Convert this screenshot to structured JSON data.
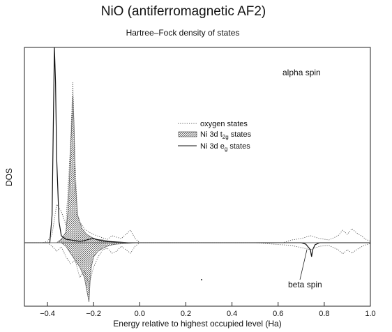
{
  "chart_data": {
    "type": "line",
    "title": "NiO (antiferromagnetic AF2)",
    "subtitle": "Hartree–Fock density of states",
    "xlabel": "Energy relative to highest occupied level (Ha)",
    "ylabel": "DOS",
    "xlim": [
      -0.5,
      1.0
    ],
    "ylim": [
      -1.0,
      3.0
    ],
    "xticks": [
      -0.4,
      -0.2,
      0.0,
      0.2,
      0.4,
      0.6,
      0.8,
      1.0
    ],
    "xtick_labels": [
      "−0.4",
      "−0.2",
      "0.0",
      "0.2",
      "0.4",
      "0.6",
      "0.8",
      "1.0"
    ],
    "grid": false,
    "legend_position": "center",
    "annotations": {
      "alpha": "alpha spin",
      "beta": "beta spin"
    },
    "series": [
      {
        "name": "oxygen states",
        "style": "dotted",
        "color": "#555555",
        "x": [
          -0.5,
          -0.42,
          -0.4,
          -0.38,
          -0.36,
          -0.34,
          -0.32,
          -0.3,
          -0.29,
          -0.28,
          -0.27,
          -0.26,
          -0.24,
          -0.22,
          -0.2,
          -0.17,
          -0.14,
          -0.12,
          -0.1,
          -0.08,
          -0.06,
          -0.04,
          -0.02,
          0.0,
          0.02,
          0.1,
          0.3,
          0.5,
          0.62,
          0.66,
          0.7,
          0.74,
          0.78,
          0.82,
          0.86,
          0.88,
          0.9,
          0.92,
          0.94,
          0.96,
          0.98,
          1.0
        ],
        "y": [
          0.0,
          0.0,
          0.02,
          0.12,
          0.55,
          0.45,
          0.25,
          1.4,
          2.3,
          1.1,
          0.4,
          0.3,
          0.2,
          0.15,
          0.12,
          0.08,
          0.05,
          0.1,
          0.08,
          0.06,
          0.12,
          0.18,
          0.06,
          0.0,
          0.0,
          0.0,
          0.0,
          0.0,
          0.0,
          0.04,
          0.06,
          0.1,
          0.06,
          0.04,
          0.1,
          0.18,
          0.12,
          0.2,
          0.14,
          0.1,
          0.05,
          0.02
        ]
      },
      {
        "name": "Ni 3d t2g states",
        "style": "hatched",
        "color": "#666666",
        "x": [
          -0.5,
          -0.36,
          -0.34,
          -0.32,
          -0.31,
          -0.3,
          -0.29,
          -0.285,
          -0.28,
          -0.27,
          -0.25,
          -0.23,
          -0.21,
          -0.19,
          -0.16,
          -0.13,
          -0.1,
          -0.05,
          0.0,
          1.0
        ],
        "y": [
          0.0,
          0.0,
          0.05,
          0.15,
          0.5,
          1.3,
          2.1,
          1.7,
          0.9,
          0.4,
          0.2,
          0.12,
          0.08,
          0.05,
          0.04,
          0.02,
          0.01,
          0.0,
          0.0,
          0.0
        ]
      },
      {
        "name": "Ni 3d eg states",
        "style": "solid",
        "color": "#111111",
        "x": [
          -0.5,
          -0.39,
          -0.38,
          -0.375,
          -0.37,
          -0.365,
          -0.36,
          -0.35,
          -0.34,
          -0.32,
          -0.3,
          -0.28,
          -0.26,
          -0.24,
          -0.22,
          -0.2,
          -0.18,
          -0.15,
          -0.1,
          -0.05,
          0.0,
          0.6,
          0.7,
          0.72,
          0.74,
          0.745,
          0.75,
          0.76,
          0.78,
          0.82,
          1.0
        ],
        "y": [
          0.0,
          0.0,
          0.4,
          1.6,
          2.8,
          2.3,
          1.2,
          0.3,
          0.1,
          0.05,
          0.04,
          0.03,
          0.02,
          0.03,
          0.05,
          0.06,
          0.04,
          0.02,
          0.01,
          0.0,
          0.0,
          0.0,
          0.0,
          -0.02,
          -0.1,
          -0.2,
          -0.1,
          -0.03,
          0.0,
          0.0,
          0.0
        ]
      },
      {
        "name": "oxygen states (beta)",
        "style": "dotted",
        "color": "#555555",
        "x": [
          -0.5,
          -0.4,
          -0.38,
          -0.36,
          -0.34,
          -0.32,
          -0.3,
          -0.28,
          -0.26,
          -0.24,
          -0.22,
          -0.2,
          -0.18,
          -0.16,
          -0.14,
          -0.12,
          -0.1,
          -0.08,
          -0.06,
          -0.04,
          -0.02,
          0.0,
          0.1,
          0.5,
          0.66,
          0.7,
          0.74,
          0.78,
          0.82,
          0.86,
          0.88,
          0.9,
          0.92,
          0.94,
          0.96,
          0.98,
          1.0
        ],
        "y": [
          0.0,
          0.0,
          -0.05,
          -0.12,
          -0.06,
          -0.2,
          -0.3,
          -0.25,
          -0.5,
          -0.4,
          -0.6,
          -0.35,
          -0.2,
          -0.1,
          -0.08,
          -0.15,
          -0.12,
          -0.05,
          -0.1,
          -0.15,
          -0.05,
          0.0,
          0.0,
          0.0,
          -0.04,
          -0.07,
          -0.1,
          -0.05,
          -0.04,
          -0.1,
          -0.16,
          -0.1,
          -0.15,
          -0.1,
          -0.06,
          -0.03,
          -0.01
        ]
      },
      {
        "name": "Ni 3d t2g states (beta)",
        "style": "hatched",
        "color": "#666666",
        "x": [
          -0.5,
          -0.34,
          -0.32,
          -0.3,
          -0.28,
          -0.26,
          -0.24,
          -0.22,
          -0.215,
          -0.21,
          -0.2,
          -0.18,
          -0.16,
          -0.14,
          -0.12,
          -0.1,
          -0.05,
          0.0,
          1.0
        ],
        "y": [
          0.0,
          0.0,
          -0.05,
          -0.15,
          -0.25,
          -0.35,
          -0.5,
          -0.85,
          -0.55,
          -0.35,
          -0.2,
          -0.12,
          -0.08,
          -0.05,
          -0.03,
          -0.02,
          -0.01,
          0.0,
          0.0
        ]
      }
    ]
  }
}
